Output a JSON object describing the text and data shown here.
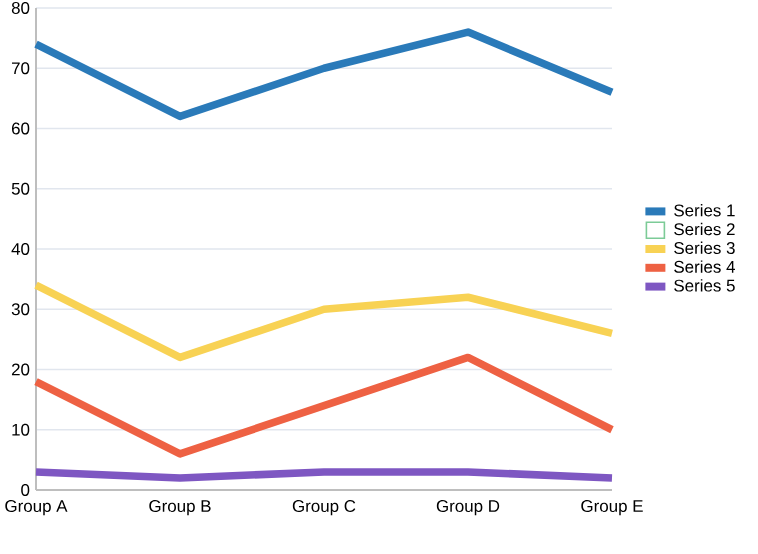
{
  "chart_data": {
    "type": "line",
    "categories": [
      "Group A",
      "Group B",
      "Group C",
      "Group D",
      "Group E"
    ],
    "series": [
      {
        "name": "Series 1",
        "color": "#2a7ab9",
        "values": [
          74,
          62,
          70,
          76,
          66
        ]
      },
      {
        "name": "Series 2",
        "color": "#7ccb97",
        "values": [
          null,
          null,
          null,
          null,
          null
        ]
      },
      {
        "name": "Series 3",
        "color": "#f8d254",
        "values": [
          34,
          22,
          30,
          32,
          26
        ]
      },
      {
        "name": "Series 4",
        "color": "#ee6143",
        "values": [
          18,
          6,
          14,
          22,
          10
        ]
      },
      {
        "name": "Series 5",
        "color": "#7e57c2",
        "values": [
          3,
          2,
          3,
          3,
          2
        ]
      }
    ],
    "ylim": [
      0,
      80
    ],
    "yticks": [
      0,
      10,
      20,
      30,
      40,
      50,
      60,
      70,
      80
    ],
    "grid": "y",
    "legend": "right",
    "marker": "none",
    "line_style": "solid"
  }
}
